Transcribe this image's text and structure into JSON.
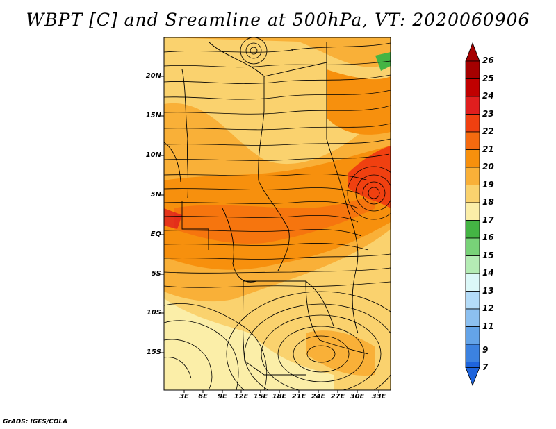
{
  "title": "WBPT [C] and Sreamline at 500hPa, VT: 2020060906",
  "footer": "GrADS: IGES/COLA",
  "lat_labels": [
    "20N",
    "15N",
    "10N",
    "5N",
    "EQ",
    "5S",
    "10S",
    "15S"
  ],
  "lon_labels": [
    "3E",
    "6E",
    "9E",
    "12E",
    "15E",
    "18E",
    "21E",
    "24E",
    "27E",
    "30E",
    "33E"
  ],
  "colorbar": {
    "levels": [
      "26",
      "25",
      "24",
      "23",
      "22",
      "21",
      "20",
      "19",
      "18",
      "17",
      "16",
      "15",
      "14",
      "13",
      "12",
      "11",
      "9",
      "7"
    ],
    "colors": [
      "#a50000",
      "#c00000",
      "#e01e1e",
      "#f04010",
      "#f56a0f",
      "#f7900d",
      "#f9b038",
      "#fad26e",
      "#fbeea8",
      "#44b444",
      "#78d278",
      "#b4ecb4",
      "#dcf8f8",
      "#b4dcf8",
      "#8cc0f0",
      "#64a4e8",
      "#3c82e0",
      "#1e64dc"
    ],
    "top_arrow": "#a50000",
    "bottom_arrow": "#1e64dc"
  },
  "map": {
    "variable": "WBPT [C]",
    "level": "500hPa",
    "valid_time": "2020060906"
  }
}
